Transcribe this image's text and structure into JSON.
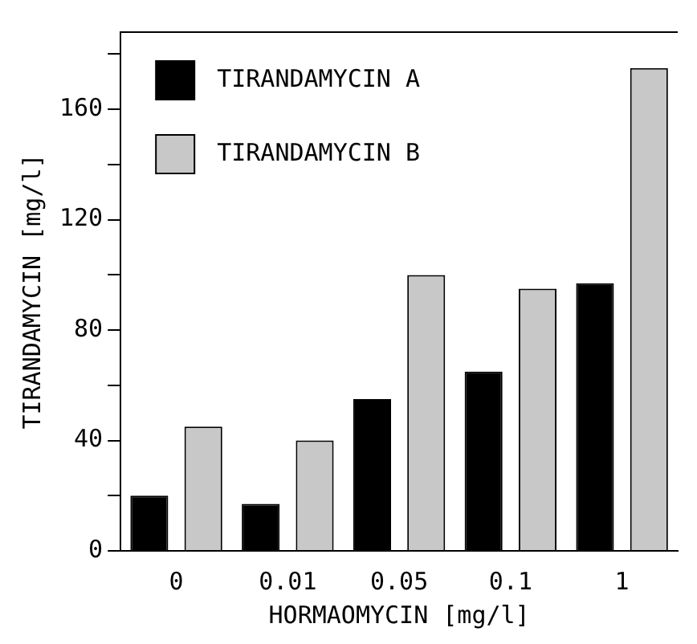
{
  "chart_data": {
    "type": "bar",
    "xlabel": "HORMAOMYCIN [mg/l]",
    "ylabel": "TIRANDAMYCIN [mg/l]",
    "categories": [
      "0",
      "0.01",
      "0.05",
      "0.1",
      "1"
    ],
    "series": [
      {
        "name": "TIRANDAMYCIN A",
        "color": "#000000",
        "values": [
          20,
          17,
          55,
          65,
          97
        ]
      },
      {
        "name": "TIRANDAMYCIN B",
        "color": "#c8c8c8",
        "values": [
          45,
          40,
          100,
          95,
          175
        ]
      }
    ],
    "ylim": [
      0,
      188
    ],
    "yticks": [
      0,
      {
        "value": 20,
        "label": null
      },
      40,
      {
        "value": 60,
        "label": null
      },
      80,
      {
        "value": 100,
        "label": null
      },
      120,
      {
        "value": 140,
        "label": null
      },
      160,
      {
        "value": 180,
        "label": null
      }
    ],
    "grid": false,
    "legend": "top left"
  }
}
